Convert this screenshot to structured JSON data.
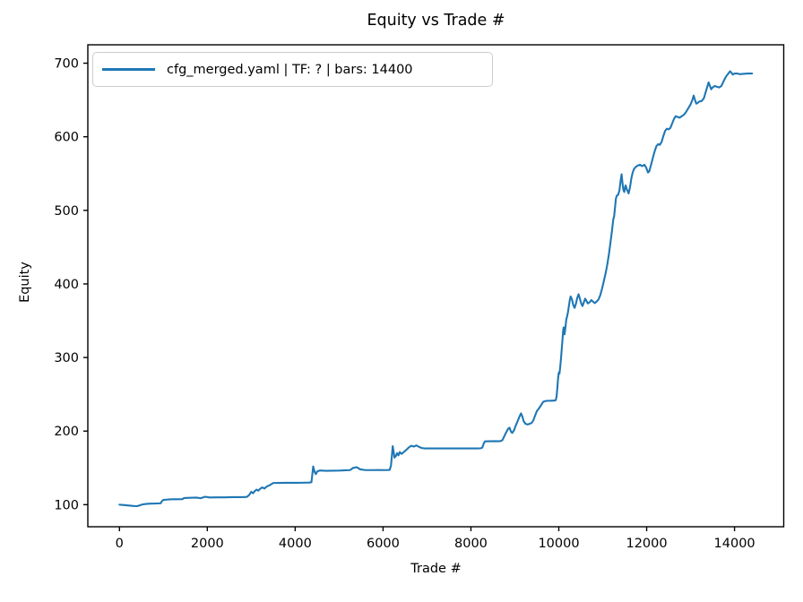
{
  "colors": {
    "line": "#1f77b4",
    "text": "#000000",
    "spine": "#000000",
    "legend_border": "#cccccc",
    "background": "#ffffff"
  },
  "chart_data": {
    "type": "line",
    "title": "Equity vs Trade #",
    "xlabel": "Trade #",
    "ylabel": "Equity",
    "grid": false,
    "legend_position": "upper left",
    "x_ticks": [
      0,
      2000,
      4000,
      6000,
      8000,
      10000,
      12000,
      14000
    ],
    "y_ticks": [
      100,
      200,
      300,
      400,
      500,
      600,
      700
    ],
    "xlim": [
      -720,
      15120
    ],
    "ylim": [
      70,
      725
    ],
    "series": [
      {
        "name": "cfg_merged.yaml | TF: ? | bars: 14400",
        "color": "#1f77b4",
        "points": [
          [
            0,
            100
          ],
          [
            80,
            99.6
          ],
          [
            160,
            99.2
          ],
          [
            240,
            98.7
          ],
          [
            320,
            98.2
          ],
          [
            400,
            98.0
          ],
          [
            460,
            99.0
          ],
          [
            520,
            100.3
          ],
          [
            600,
            101.0
          ],
          [
            700,
            101.4
          ],
          [
            800,
            101.5
          ],
          [
            900,
            101.8
          ],
          [
            940,
            102.0
          ],
          [
            970,
            105.0
          ],
          [
            1000,
            106.5
          ],
          [
            1100,
            107.0
          ],
          [
            1200,
            107.3
          ],
          [
            1300,
            107.4
          ],
          [
            1430,
            107.5
          ],
          [
            1470,
            109.0
          ],
          [
            1600,
            109.3
          ],
          [
            1750,
            109.6
          ],
          [
            1850,
            108.8
          ],
          [
            1950,
            110.8
          ],
          [
            2050,
            109.8
          ],
          [
            2200,
            110.0
          ],
          [
            2400,
            110.0
          ],
          [
            2600,
            110.2
          ],
          [
            2800,
            110.3
          ],
          [
            2900,
            110.5
          ],
          [
            2950,
            113.0
          ],
          [
            3000,
            117.5
          ],
          [
            3040,
            115.5
          ],
          [
            3080,
            118.5
          ],
          [
            3120,
            120.5
          ],
          [
            3160,
            119.0
          ],
          [
            3200,
            121.5
          ],
          [
            3250,
            123.5
          ],
          [
            3300,
            122.0
          ],
          [
            3350,
            124.5
          ],
          [
            3420,
            126.5
          ],
          [
            3500,
            129.5
          ],
          [
            3650,
            129.6
          ],
          [
            3800,
            129.7
          ],
          [
            4000,
            129.7
          ],
          [
            4150,
            129.8
          ],
          [
            4320,
            130.0
          ],
          [
            4370,
            130.5
          ],
          [
            4390,
            141.0
          ],
          [
            4410,
            152.0
          ],
          [
            4430,
            147.0
          ],
          [
            4450,
            143.5
          ],
          [
            4470,
            141.5
          ],
          [
            4500,
            145.0
          ],
          [
            4560,
            146.5
          ],
          [
            4700,
            146.0
          ],
          [
            4850,
            146.2
          ],
          [
            5000,
            146.3
          ],
          [
            5150,
            146.8
          ],
          [
            5250,
            147.0
          ],
          [
            5320,
            150.0
          ],
          [
            5400,
            151.0
          ],
          [
            5480,
            148.0
          ],
          [
            5600,
            147.0
          ],
          [
            5750,
            147.0
          ],
          [
            5900,
            147.1
          ],
          [
            6050,
            147.0
          ],
          [
            6150,
            147.2
          ],
          [
            6180,
            153.0
          ],
          [
            6200,
            166.0
          ],
          [
            6220,
            179.5
          ],
          [
            6240,
            172.0
          ],
          [
            6260,
            164.0
          ],
          [
            6290,
            166.0
          ],
          [
            6320,
            170.0
          ],
          [
            6350,
            167.0
          ],
          [
            6380,
            171.5
          ],
          [
            6420,
            169.0
          ],
          [
            6460,
            171.0
          ],
          [
            6520,
            174.0
          ],
          [
            6580,
            177.5
          ],
          [
            6640,
            180.0
          ],
          [
            6700,
            179.0
          ],
          [
            6760,
            180.5
          ],
          [
            6820,
            178.5
          ],
          [
            6880,
            177.0
          ],
          [
            6950,
            176.5
          ],
          [
            7100,
            176.4
          ],
          [
            7300,
            176.4
          ],
          [
            7500,
            176.5
          ],
          [
            7700,
            176.4
          ],
          [
            7900,
            176.5
          ],
          [
            8100,
            176.5
          ],
          [
            8220,
            176.6
          ],
          [
            8260,
            177.5
          ],
          [
            8290,
            183.0
          ],
          [
            8320,
            186.0
          ],
          [
            8420,
            186.2
          ],
          [
            8520,
            186.4
          ],
          [
            8620,
            186.2
          ],
          [
            8680,
            186.5
          ],
          [
            8720,
            188.0
          ],
          [
            8760,
            193.0
          ],
          [
            8800,
            198.0
          ],
          [
            8850,
            203.5
          ],
          [
            8880,
            204.5
          ],
          [
            8910,
            199.5
          ],
          [
            8940,
            197.5
          ],
          [
            8980,
            201.0
          ],
          [
            9020,
            207.5
          ],
          [
            9060,
            213.0
          ],
          [
            9100,
            219.0
          ],
          [
            9140,
            224.0
          ],
          [
            9170,
            220.0
          ],
          [
            9200,
            213.5
          ],
          [
            9240,
            210.0
          ],
          [
            9290,
            209.0
          ],
          [
            9340,
            210.0
          ],
          [
            9380,
            211.0
          ],
          [
            9420,
            214.5
          ],
          [
            9460,
            221.0
          ],
          [
            9500,
            227.0
          ],
          [
            9550,
            231.0
          ],
          [
            9590,
            234.5
          ],
          [
            9620,
            237.5
          ],
          [
            9650,
            240.0
          ],
          [
            9710,
            241.0
          ],
          [
            9770,
            241.2
          ],
          [
            9830,
            241.3
          ],
          [
            9890,
            241.4
          ],
          [
            9930,
            242.0
          ],
          [
            9950,
            247.0
          ],
          [
            9965,
            257.0
          ],
          [
            9980,
            269.0
          ],
          [
            9995,
            277.5
          ],
          [
            10005,
            280.0
          ],
          [
            10015,
            278.0
          ],
          [
            10025,
            283.0
          ],
          [
            10045,
            295.0
          ],
          [
            10065,
            310.0
          ],
          [
            10085,
            325.0
          ],
          [
            10100,
            337.0
          ],
          [
            10110,
            341.0
          ],
          [
            10120,
            336.0
          ],
          [
            10130,
            331.5
          ],
          [
            10150,
            340.0
          ],
          [
            10170,
            351.5
          ],
          [
            10190,
            356.0
          ],
          [
            10210,
            362.0
          ],
          [
            10230,
            370.0
          ],
          [
            10250,
            378.0
          ],
          [
            10270,
            383.0
          ],
          [
            10300,
            379.0
          ],
          [
            10330,
            371.0
          ],
          [
            10360,
            367.5
          ],
          [
            10390,
            373.0
          ],
          [
            10420,
            381.0
          ],
          [
            10450,
            386.0
          ],
          [
            10480,
            380.0
          ],
          [
            10510,
            373.5
          ],
          [
            10540,
            370.0
          ],
          [
            10570,
            375.0
          ],
          [
            10600,
            380.0
          ],
          [
            10630,
            377.0
          ],
          [
            10660,
            373.5
          ],
          [
            10700,
            375.0
          ],
          [
            10740,
            378.0
          ],
          [
            10780,
            376.0
          ],
          [
            10820,
            374.0
          ],
          [
            10860,
            376.0
          ],
          [
            10900,
            378.5
          ],
          [
            10940,
            384.0
          ],
          [
            10980,
            392.5
          ],
          [
            11020,
            402.5
          ],
          [
            11060,
            413.0
          ],
          [
            11100,
            425.0
          ],
          [
            11140,
            440.0
          ],
          [
            11180,
            458.0
          ],
          [
            11210,
            472.0
          ],
          [
            11240,
            487.5
          ],
          [
            11260,
            492.0
          ],
          [
            11280,
            504.0
          ],
          [
            11300,
            516.0
          ],
          [
            11320,
            520.0
          ],
          [
            11350,
            521.0
          ],
          [
            11380,
            527.0
          ],
          [
            11410,
            541.5
          ],
          [
            11430,
            549.0
          ],
          [
            11450,
            537.0
          ],
          [
            11470,
            528.0
          ],
          [
            11490,
            525.0
          ],
          [
            11520,
            534.0
          ],
          [
            11550,
            528.5
          ],
          [
            11590,
            523.0
          ],
          [
            11620,
            531.0
          ],
          [
            11650,
            543.0
          ],
          [
            11680,
            551.0
          ],
          [
            11710,
            556.0
          ],
          [
            11750,
            559.0
          ],
          [
            11800,
            561.0
          ],
          [
            11850,
            562.0
          ],
          [
            11900,
            560.0
          ],
          [
            11950,
            562.0
          ],
          [
            11990,
            558.0
          ],
          [
            12030,
            551.5
          ],
          [
            12060,
            553.0
          ],
          [
            12100,
            562.0
          ],
          [
            12140,
            571.0
          ],
          [
            12180,
            580.0
          ],
          [
            12220,
            587.0
          ],
          [
            12260,
            590.0
          ],
          [
            12300,
            589.0
          ],
          [
            12340,
            593.0
          ],
          [
            12380,
            601.0
          ],
          [
            12420,
            608.0
          ],
          [
            12460,
            611.0
          ],
          [
            12500,
            610.0
          ],
          [
            12540,
            612.0
          ],
          [
            12580,
            618.0
          ],
          [
            12620,
            624.0
          ],
          [
            12660,
            628.0
          ],
          [
            12700,
            627.0
          ],
          [
            12750,
            626.0
          ],
          [
            12800,
            628.0
          ],
          [
            12850,
            630.0
          ],
          [
            12900,
            634.0
          ],
          [
            12950,
            639.0
          ],
          [
            13000,
            644.0
          ],
          [
            13040,
            650.0
          ],
          [
            13070,
            656.0
          ],
          [
            13100,
            650.0
          ],
          [
            13130,
            645.0
          ],
          [
            13160,
            646.0
          ],
          [
            13200,
            648.0
          ],
          [
            13250,
            648.5
          ],
          [
            13300,
            652.0
          ],
          [
            13340,
            660.0
          ],
          [
            13380,
            668.0
          ],
          [
            13410,
            674.0
          ],
          [
            13440,
            669.0
          ],
          [
            13470,
            664.5
          ],
          [
            13500,
            667.0
          ],
          [
            13550,
            669.0
          ],
          [
            13600,
            668.0
          ],
          [
            13650,
            667.0
          ],
          [
            13700,
            669.0
          ],
          [
            13740,
            674.0
          ],
          [
            13780,
            679.0
          ],
          [
            13820,
            683.0
          ],
          [
            13860,
            686.0
          ],
          [
            13900,
            689.0
          ],
          [
            13930,
            687.0
          ],
          [
            13960,
            684.5
          ],
          [
            14000,
            686.0
          ],
          [
            14060,
            686.0
          ],
          [
            14120,
            685.0
          ],
          [
            14200,
            685.5
          ],
          [
            14300,
            686.0
          ],
          [
            14400,
            686.0
          ]
        ]
      }
    ]
  }
}
